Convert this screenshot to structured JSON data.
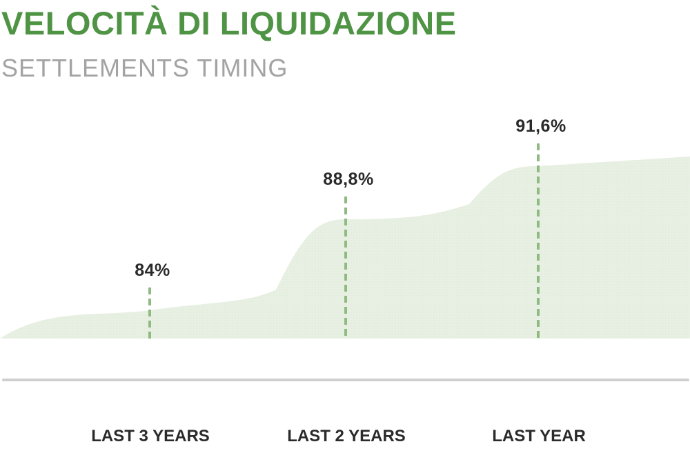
{
  "title": "VELOCITÀ DI LIQUIDAZIONE",
  "subtitle": "SETTLEMENTS TIMING",
  "colors": {
    "title": "#4f9444",
    "subtitle": "#a3a3a3",
    "area_fill": "#e8f0e3",
    "marker_line": "#8fbb82",
    "baseline": "#cfcfcf",
    "labels": "#2a2a2a"
  },
  "chart_data": {
    "type": "area",
    "categories": [
      "LAST 3 YEARS",
      "LAST 2 YEARS",
      "LAST YEAR"
    ],
    "values": [
      84,
      88.8,
      91.6
    ],
    "value_labels": [
      "84%",
      "88,8%",
      "91,6%"
    ],
    "ylim": [
      78,
      96
    ],
    "grid": false,
    "legend": "none"
  }
}
